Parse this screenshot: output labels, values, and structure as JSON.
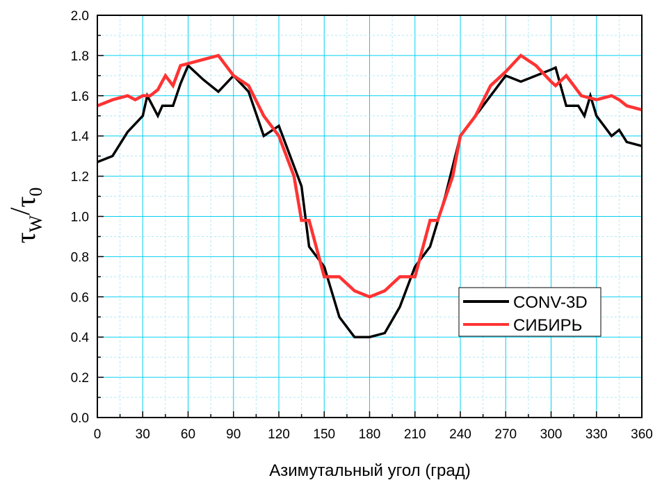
{
  "chart_data": {
    "type": "line",
    "xlabel": "Азимутальный угол (град)",
    "ylabel": {
      "main": "τ",
      "sub1": "W",
      "slash": "/",
      "main2": "τ",
      "sub2": "0"
    },
    "xlim": [
      0,
      360
    ],
    "ylim": [
      0.0,
      2.0
    ],
    "xticks": [
      0,
      30,
      60,
      90,
      120,
      150,
      180,
      210,
      240,
      270,
      300,
      330,
      360
    ],
    "yticks": [
      0.0,
      0.2,
      0.4,
      0.6,
      0.8,
      1.0,
      1.2,
      1.4,
      1.6,
      1.8,
      2.0
    ],
    "xtick_labels": [
      "0",
      "30",
      "60",
      "90",
      "120",
      "150",
      "180",
      "210",
      "240",
      "270",
      "300",
      "330",
      "360"
    ],
    "ytick_labels": [
      "0.0",
      "0.2",
      "0.4",
      "0.6",
      "0.8",
      "1.0",
      "1.2",
      "1.4",
      "1.6",
      "1.8",
      "2.0"
    ],
    "grid": true,
    "legend_position": "right",
    "series": [
      {
        "name": "CONV-3D",
        "color": "#000000",
        "points": [
          [
            0,
            1.27
          ],
          [
            10,
            1.3
          ],
          [
            20,
            1.42
          ],
          [
            30,
            1.5
          ],
          [
            33,
            1.6
          ],
          [
            40,
            1.5
          ],
          [
            43,
            1.55
          ],
          [
            50,
            1.55
          ],
          [
            55,
            1.66
          ],
          [
            60,
            1.75
          ],
          [
            70,
            1.68
          ],
          [
            80,
            1.62
          ],
          [
            90,
            1.7
          ],
          [
            100,
            1.62
          ],
          [
            110,
            1.4
          ],
          [
            120,
            1.45
          ],
          [
            135,
            1.15
          ],
          [
            140,
            0.85
          ],
          [
            150,
            0.75
          ],
          [
            160,
            0.5
          ],
          [
            170,
            0.4
          ],
          [
            180,
            0.4
          ],
          [
            190,
            0.42
          ],
          [
            200,
            0.55
          ],
          [
            210,
            0.75
          ],
          [
            220,
            0.85
          ],
          [
            230,
            1.1
          ],
          [
            240,
            1.4
          ],
          [
            250,
            1.5
          ],
          [
            260,
            1.6
          ],
          [
            270,
            1.7
          ],
          [
            280,
            1.67
          ],
          [
            290,
            1.7
          ],
          [
            300,
            1.73
          ],
          [
            303,
            1.74
          ],
          [
            310,
            1.55
          ],
          [
            318,
            1.55
          ],
          [
            322,
            1.5
          ],
          [
            326,
            1.6
          ],
          [
            330,
            1.5
          ],
          [
            340,
            1.4
          ],
          [
            345,
            1.43
          ],
          [
            350,
            1.37
          ],
          [
            360,
            1.35
          ]
        ]
      },
      {
        "name": "СИБИРЬ",
        "color": "#ff3333",
        "points": [
          [
            0,
            1.55
          ],
          [
            10,
            1.58
          ],
          [
            20,
            1.6
          ],
          [
            25,
            1.58
          ],
          [
            30,
            1.6
          ],
          [
            35,
            1.6
          ],
          [
            40,
            1.63
          ],
          [
            45,
            1.7
          ],
          [
            50,
            1.65
          ],
          [
            55,
            1.75
          ],
          [
            60,
            1.76
          ],
          [
            70,
            1.78
          ],
          [
            80,
            1.8
          ],
          [
            90,
            1.7
          ],
          [
            100,
            1.65
          ],
          [
            110,
            1.5
          ],
          [
            120,
            1.4
          ],
          [
            130,
            1.2
          ],
          [
            135,
            0.98
          ],
          [
            140,
            0.98
          ],
          [
            150,
            0.7
          ],
          [
            160,
            0.7
          ],
          [
            170,
            0.63
          ],
          [
            180,
            0.6
          ],
          [
            190,
            0.63
          ],
          [
            200,
            0.7
          ],
          [
            210,
            0.7
          ],
          [
            220,
            0.98
          ],
          [
            225,
            0.98
          ],
          [
            235,
            1.2
          ],
          [
            240,
            1.4
          ],
          [
            250,
            1.5
          ],
          [
            260,
            1.65
          ],
          [
            270,
            1.72
          ],
          [
            280,
            1.8
          ],
          [
            290,
            1.75
          ],
          [
            300,
            1.67
          ],
          [
            303,
            1.65
          ],
          [
            310,
            1.7
          ],
          [
            320,
            1.6
          ],
          [
            330,
            1.58
          ],
          [
            340,
            1.6
          ],
          [
            345,
            1.58
          ],
          [
            350,
            1.55
          ],
          [
            360,
            1.53
          ]
        ]
      }
    ]
  }
}
